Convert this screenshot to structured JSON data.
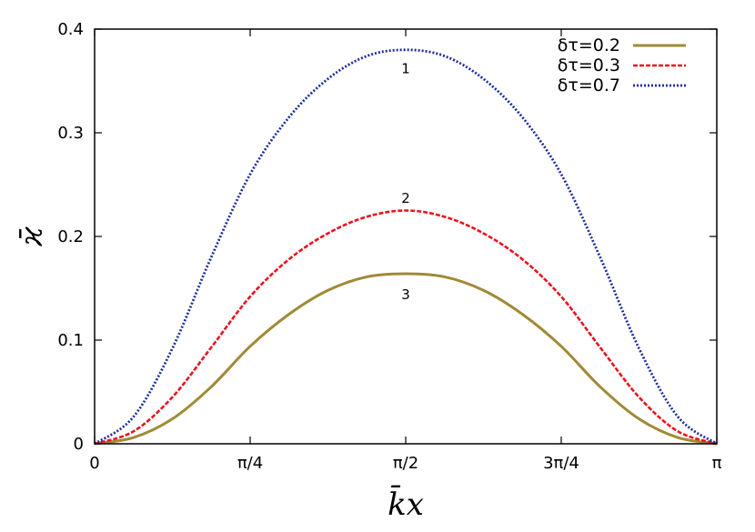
{
  "chart_data": {
    "type": "line",
    "xlabel": "k̄x",
    "ylabel": "ϰ̄",
    "xlim": [
      0,
      3.14159265
    ],
    "ylim": [
      0,
      0.4
    ],
    "x_ticks": [
      {
        "value": 0,
        "label": "0"
      },
      {
        "value": 0.785398,
        "label": "π/4"
      },
      {
        "value": 1.570796,
        "label": "π/2"
      },
      {
        "value": 2.356194,
        "label": "3π/4"
      },
      {
        "value": 3.141593,
        "label": "π"
      }
    ],
    "y_ticks": [
      {
        "value": 0,
        "label": "0"
      },
      {
        "value": 0.1,
        "label": "0.1"
      },
      {
        "value": 0.2,
        "label": "0.2"
      },
      {
        "value": 0.3,
        "label": "0.3"
      },
      {
        "value": 0.4,
        "label": "0.4"
      }
    ],
    "grid": false,
    "legend_position": "top-right",
    "series": [
      {
        "name": "δτ=0.2",
        "label": "3",
        "color": "#a08a36",
        "style": "solid",
        "x": [
          0,
          0.1963,
          0.3927,
          0.589,
          0.7854,
          0.9817,
          1.1781,
          1.3744,
          1.5708,
          1.7671,
          1.9635,
          2.1598,
          2.3562,
          2.5525,
          2.7489,
          2.9452,
          3.1416
        ],
        "y": [
          0.0,
          0.006,
          0.024,
          0.055,
          0.094,
          0.125,
          0.148,
          0.161,
          0.164,
          0.161,
          0.148,
          0.125,
          0.094,
          0.055,
          0.024,
          0.006,
          0.0
        ]
      },
      {
        "name": "δτ=0.3",
        "label": "2",
        "color": "#e8141d",
        "style": "dashed",
        "x": [
          0,
          0.1963,
          0.3927,
          0.589,
          0.7854,
          0.9817,
          1.1781,
          1.3744,
          1.5708,
          1.7671,
          1.9635,
          2.1598,
          2.3562,
          2.5525,
          2.7489,
          2.9452,
          3.1416
        ],
        "y": [
          0.0,
          0.012,
          0.045,
          0.093,
          0.142,
          0.178,
          0.203,
          0.219,
          0.225,
          0.219,
          0.203,
          0.178,
          0.142,
          0.093,
          0.045,
          0.012,
          0.0
        ]
      },
      {
        "name": "δτ=0.7",
        "label": "1",
        "color": "#1c2d9c",
        "style": "dotted",
        "x": [
          0,
          0.1963,
          0.3927,
          0.589,
          0.7854,
          0.9817,
          1.1781,
          1.3744,
          1.5708,
          1.7671,
          1.9635,
          2.1598,
          2.3562,
          2.5525,
          2.7489,
          2.9452,
          3.1416
        ],
        "y": [
          0.0,
          0.026,
          0.092,
          0.18,
          0.26,
          0.315,
          0.352,
          0.374,
          0.38,
          0.374,
          0.352,
          0.315,
          0.26,
          0.18,
          0.092,
          0.026,
          0.0
        ]
      }
    ],
    "curve_labels": [
      {
        "series": 2,
        "text": "1",
        "x": 1.5708,
        "y": 0.362
      },
      {
        "series": 1,
        "text": "2",
        "x": 1.5708,
        "y": 0.237
      },
      {
        "series": 0,
        "text": "3",
        "x": 1.5708,
        "y": 0.144
      }
    ]
  }
}
